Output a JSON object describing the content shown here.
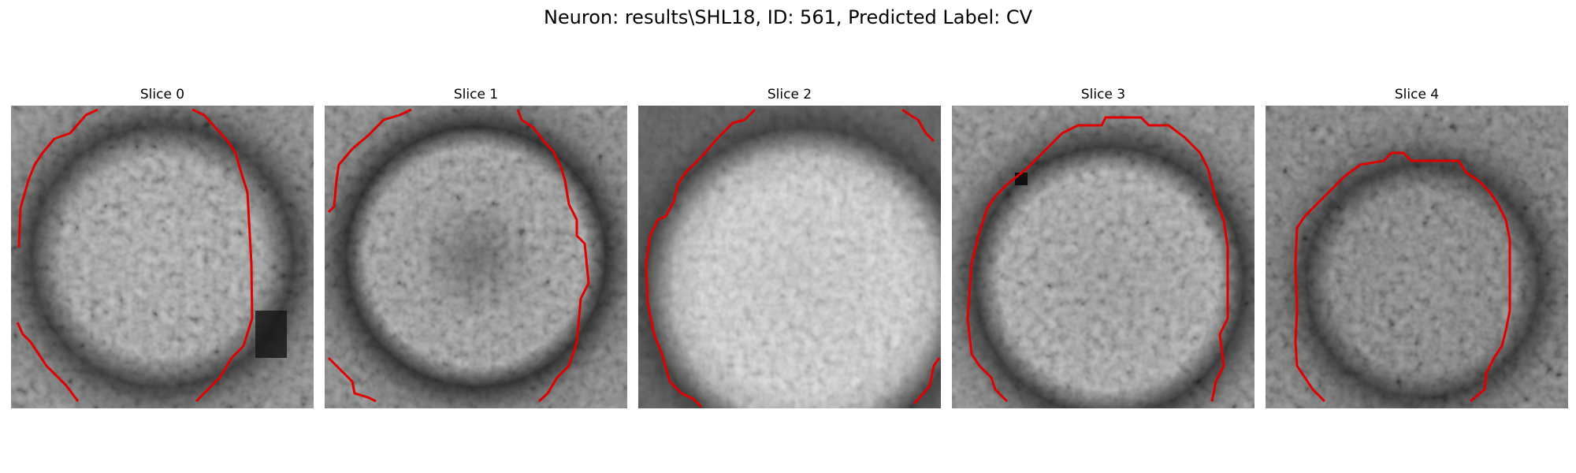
{
  "figure": {
    "title": "Neuron: results\\SHL18, ID: 561, Predicted Label: CV"
  },
  "panels": [
    {
      "title": "Slice 0"
    },
    {
      "title": "Slice 1"
    },
    {
      "title": "Slice 2"
    },
    {
      "title": "Slice 3"
    },
    {
      "title": "Slice 4"
    }
  ],
  "colors": {
    "contour": "#e00000",
    "background": "#ffffff"
  }
}
